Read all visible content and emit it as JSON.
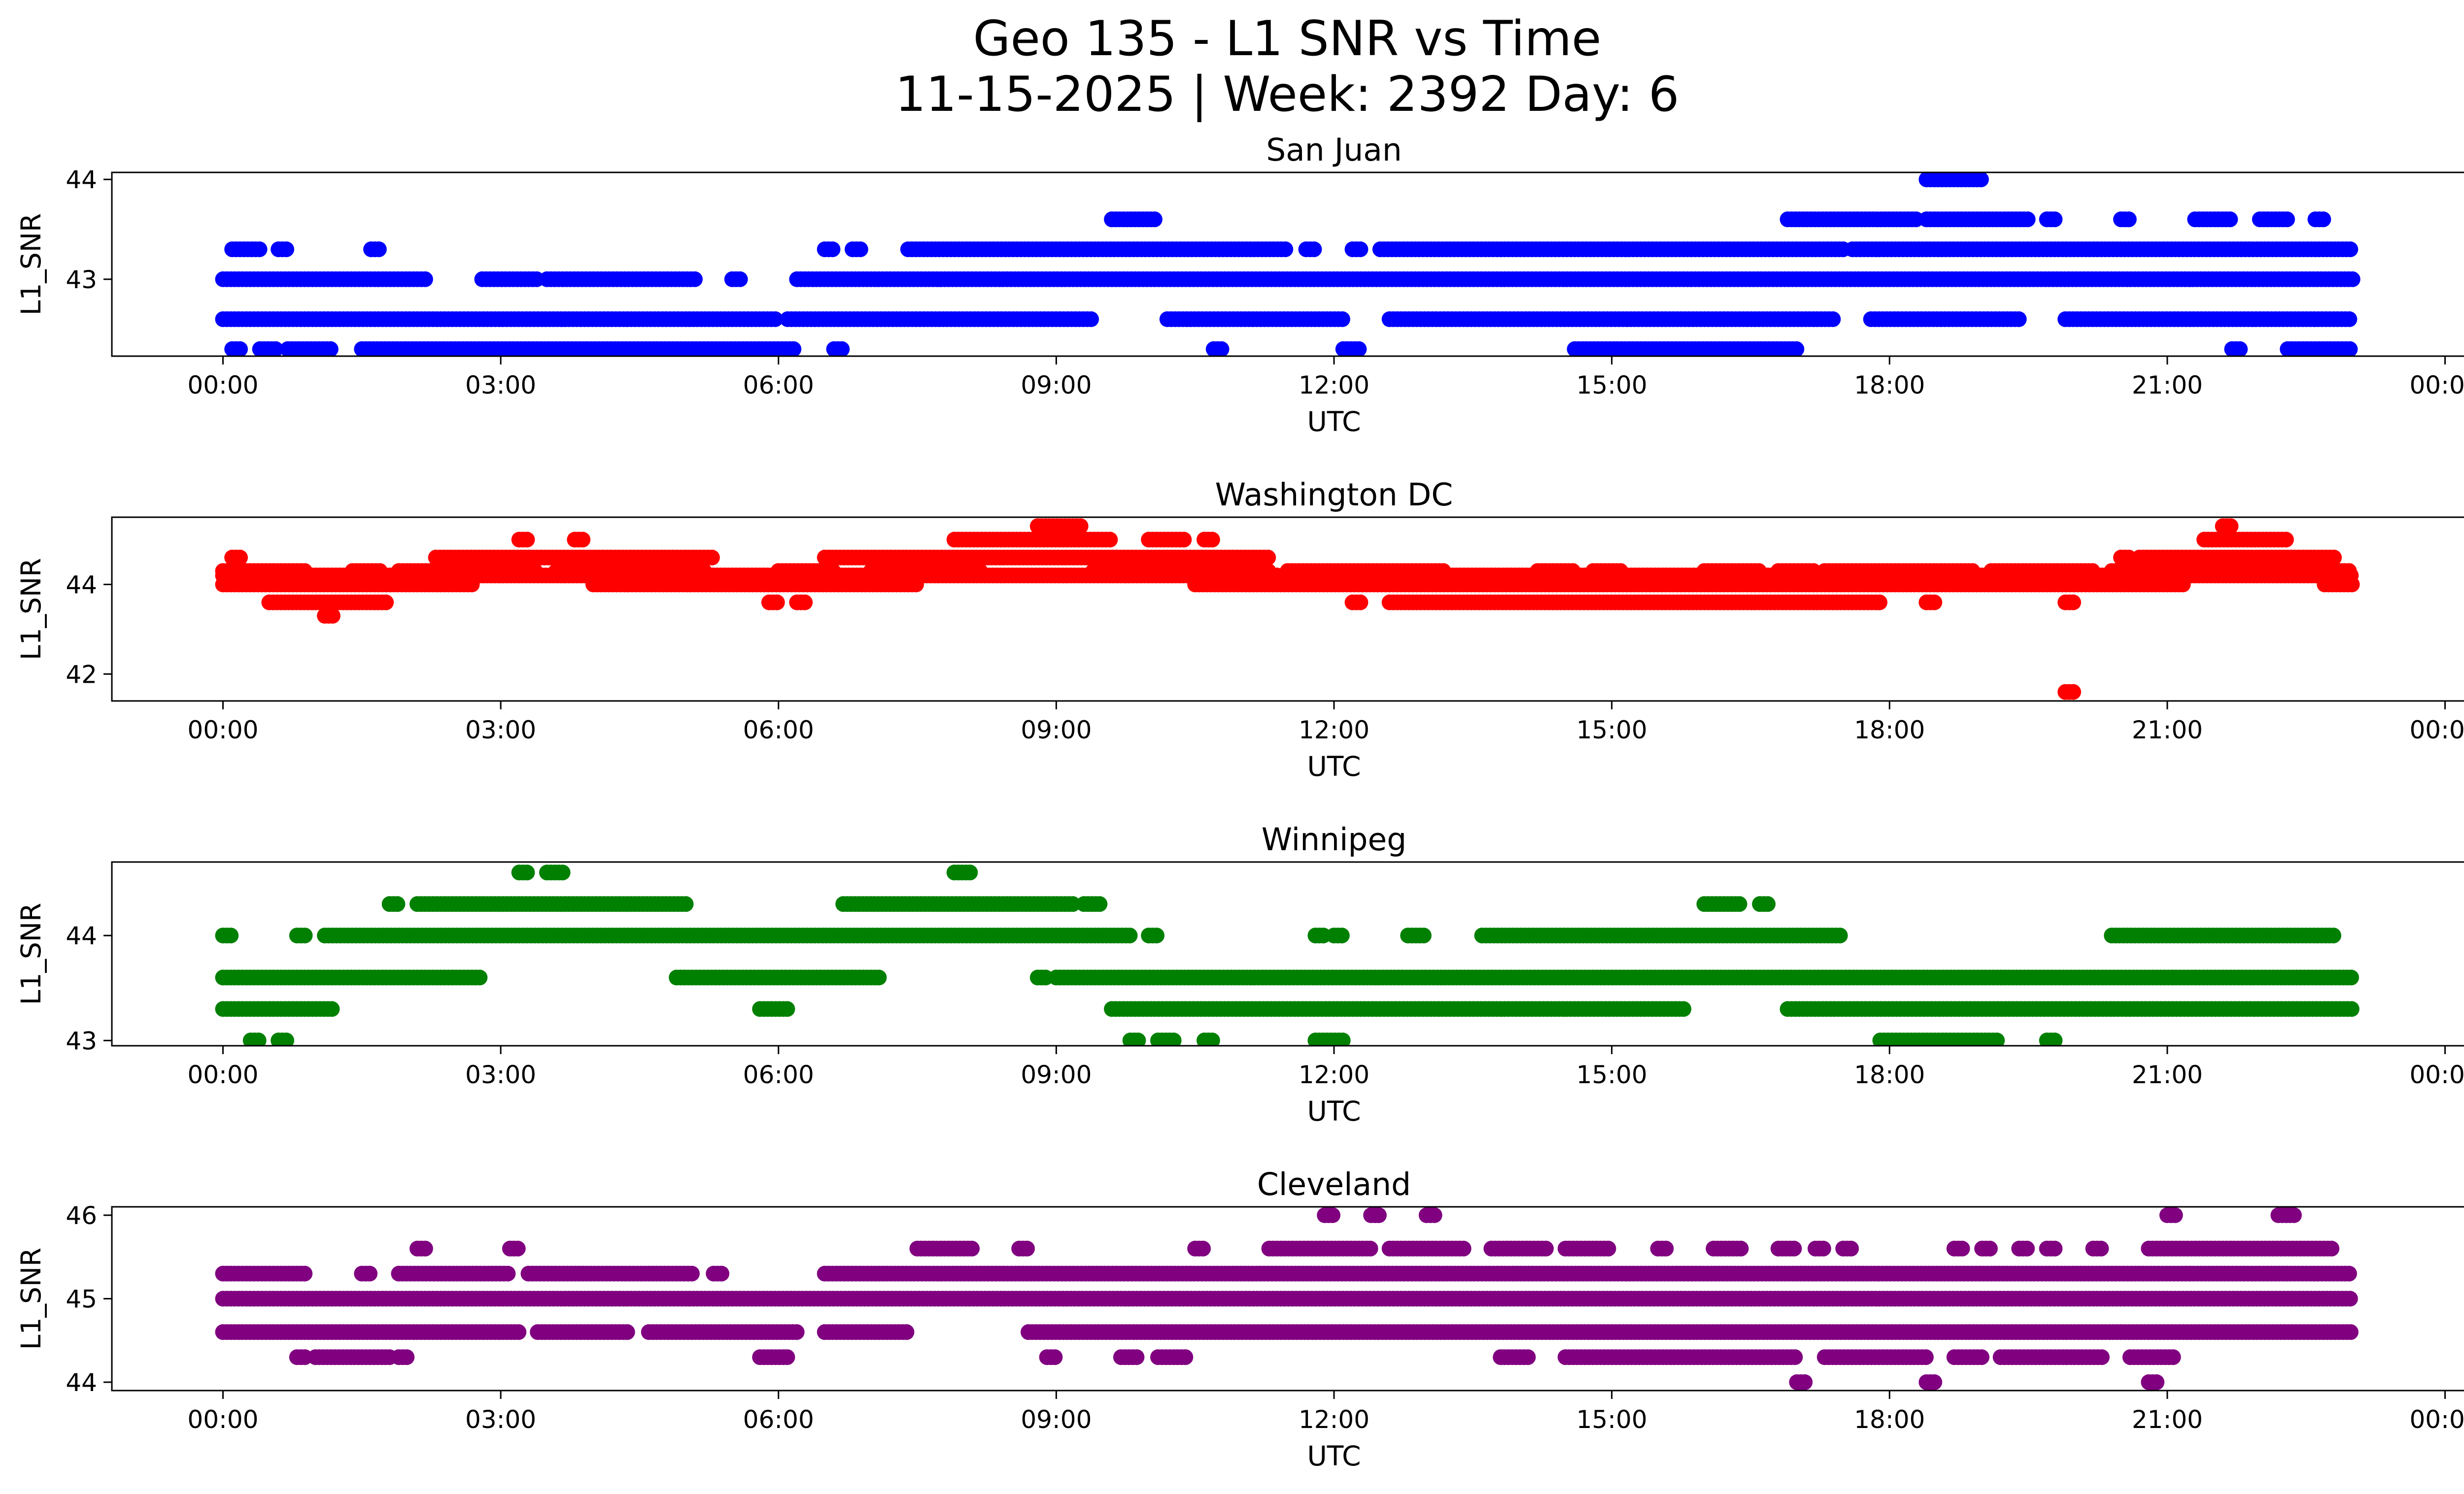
{
  "figure": {
    "title_line1": "Geo 135 - L1 SNR vs Time",
    "title_line2": "11-15-2025 | Week: 2392 Day: 6"
  },
  "chart_data": [
    {
      "type": "scatter",
      "title": "San Juan",
      "xlabel": "UTC",
      "ylabel": "L1_SNR",
      "color": "#0000ff",
      "x_ticks": [
        "00:00",
        "03:00",
        "06:00",
        "09:00",
        "12:00",
        "15:00",
        "18:00",
        "21:00",
        "00:00"
      ],
      "x_range_hours": [
        -1.2,
        25.2
      ],
      "y_ticks": [
        43,
        44
      ],
      "ylim": [
        42.23,
        44.07
      ],
      "series": [
        {
          "value": 43.0,
          "intervals": [
            [
              0.0,
              2.2
            ],
            [
              2.8,
              3.4
            ],
            [
              3.5,
              5.1
            ],
            [
              5.5,
              5.6
            ],
            [
              6.2,
              23.0
            ]
          ]
        },
        {
          "value": 42.6,
          "intervals": [
            [
              0.0,
              6.0
            ],
            [
              6.1,
              9.4
            ],
            [
              10.2,
              12.1
            ],
            [
              12.6,
              17.4
            ],
            [
              17.8,
              19.4
            ],
            [
              19.9,
              23.0
            ]
          ]
        },
        {
          "value": 42.3,
          "intervals": [
            [
              0.1,
              0.2
            ],
            [
              0.4,
              0.6
            ],
            [
              0.7,
              1.2
            ],
            [
              1.5,
              6.2
            ],
            [
              6.6,
              6.7
            ],
            [
              10.7,
              10.8
            ],
            [
              12.1,
              12.3
            ],
            [
              14.6,
              17.0
            ],
            [
              21.7,
              21.8
            ],
            [
              22.3,
              23.0
            ]
          ]
        },
        {
          "value": 43.3,
          "intervals": [
            [
              0.1,
              0.4
            ],
            [
              0.6,
              0.7
            ],
            [
              1.6,
              1.7
            ],
            [
              6.5,
              6.6
            ],
            [
              6.8,
              6.9
            ],
            [
              7.4,
              11.5
            ],
            [
              11.7,
              11.8
            ],
            [
              12.2,
              12.3
            ],
            [
              12.5,
              17.5
            ],
            [
              17.6,
              23.0
            ]
          ]
        },
        {
          "value": 43.6,
          "intervals": [
            [
              9.6,
              10.1
            ],
            [
              16.9,
              18.3
            ],
            [
              18.4,
              19.5
            ],
            [
              19.7,
              19.8
            ],
            [
              20.5,
              20.6
            ],
            [
              21.3,
              21.7
            ],
            [
              22.0,
              22.3
            ],
            [
              22.6,
              22.7
            ]
          ]
        },
        {
          "value": 44.0,
          "intervals": [
            [
              18.4,
              19.0
            ]
          ]
        }
      ]
    },
    {
      "type": "scatter",
      "title": "Washington DC",
      "xlabel": "UTC",
      "ylabel": "L1_SNR",
      "color": "#ff0000",
      "x_ticks": [
        "00:00",
        "03:00",
        "06:00",
        "09:00",
        "12:00",
        "15:00",
        "18:00",
        "21:00",
        "00:00"
      ],
      "x_range_hours": [
        -1.2,
        25.2
      ],
      "y_ticks": [
        42,
        44
      ],
      "ylim": [
        41.4,
        45.5
      ],
      "series": [
        {
          "value": 44.2,
          "intervals": [
            [
              0.0,
              11.4
            ],
            [
              11.6,
              23.0
            ]
          ]
        },
        {
          "value": 44.0,
          "intervals": [
            [
              0.0,
              2.7
            ],
            [
              4.0,
              7.5
            ],
            [
              10.5,
              21.2
            ],
            [
              22.7,
              23.0
            ]
          ]
        },
        {
          "value": 44.3,
          "intervals": [
            [
              0.0,
              0.9
            ],
            [
              1.4,
              1.7
            ],
            [
              1.9,
              3.4
            ],
            [
              3.6,
              5.2
            ],
            [
              6.0,
              6.6
            ],
            [
              7.0,
              8.2
            ],
            [
              9.4,
              11.3
            ],
            [
              11.5,
              13.2
            ],
            [
              14.2,
              14.6
            ],
            [
              14.8,
              15.1
            ],
            [
              16.0,
              16.6
            ],
            [
              16.8,
              17.2
            ],
            [
              17.3,
              18.9
            ],
            [
              19.1,
              20.2
            ],
            [
              20.4,
              23.0
            ]
          ]
        },
        {
          "value": 43.6,
          "intervals": [
            [
              0.5,
              1.8
            ],
            [
              5.9,
              6.0
            ],
            [
              6.2,
              6.3
            ],
            [
              12.2,
              12.3
            ],
            [
              12.6,
              17.9
            ],
            [
              18.4,
              18.5
            ],
            [
              19.9,
              20.0
            ]
          ]
        },
        {
          "value": 44.6,
          "intervals": [
            [
              0.1,
              0.2
            ],
            [
              2.3,
              5.3
            ],
            [
              6.5,
              11.3
            ],
            [
              20.5,
              20.6
            ],
            [
              20.7,
              22.8
            ]
          ]
        },
        {
          "value": 45.0,
          "intervals": [
            [
              3.2,
              3.3
            ],
            [
              3.8,
              3.9
            ],
            [
              7.9,
              9.6
            ],
            [
              10.0,
              10.4
            ],
            [
              10.6,
              10.7
            ],
            [
              21.4,
              22.3
            ]
          ]
        },
        {
          "value": 43.3,
          "intervals": [
            [
              1.1,
              1.2
            ]
          ]
        },
        {
          "value": 45.3,
          "intervals": [
            [
              8.8,
              9.3
            ],
            [
              21.6,
              21.7
            ]
          ]
        },
        {
          "value": 41.6,
          "intervals": [
            [
              19.9,
              20.0
            ]
          ]
        }
      ]
    },
    {
      "type": "scatter",
      "title": "Winnipeg",
      "xlabel": "UTC",
      "ylabel": "L1_SNR",
      "color": "#008000",
      "x_ticks": [
        "00:00",
        "03:00",
        "06:00",
        "09:00",
        "12:00",
        "15:00",
        "18:00",
        "21:00",
        "00:00"
      ],
      "x_range_hours": [
        -1.2,
        25.2
      ],
      "y_ticks": [
        43,
        44
      ],
      "ylim": [
        42.95,
        44.7
      ],
      "series": [
        {
          "value": 43.6,
          "intervals": [
            [
              0.0,
              2.8
            ],
            [
              4.9,
              7.1
            ],
            [
              8.8,
              8.9
            ],
            [
              9.0,
              23.0
            ]
          ]
        },
        {
          "value": 43.3,
          "intervals": [
            [
              0.0,
              1.2
            ],
            [
              5.8,
              6.1
            ],
            [
              9.6,
              15.8
            ],
            [
              16.9,
              23.0
            ]
          ]
        },
        {
          "value": 44.0,
          "intervals": [
            [
              0.0,
              0.1
            ],
            [
              0.8,
              0.9
            ],
            [
              1.1,
              9.8
            ],
            [
              10.0,
              10.1
            ],
            [
              11.8,
              11.9
            ],
            [
              12.0,
              12.1
            ],
            [
              12.8,
              13.0
            ],
            [
              13.6,
              17.5
            ],
            [
              20.4,
              22.8
            ]
          ]
        },
        {
          "value": 44.3,
          "intervals": [
            [
              1.8,
              1.9
            ],
            [
              2.1,
              5.0
            ],
            [
              6.7,
              9.2
            ],
            [
              9.3,
              9.5
            ],
            [
              16.0,
              16.4
            ],
            [
              16.6,
              16.7
            ]
          ]
        },
        {
          "value": 44.6,
          "intervals": [
            [
              3.2,
              3.3
            ],
            [
              3.5,
              3.7
            ],
            [
              7.9,
              8.1
            ]
          ]
        },
        {
          "value": 43.0,
          "intervals": [
            [
              0.3,
              0.4
            ],
            [
              0.6,
              0.7
            ],
            [
              9.8,
              9.9
            ],
            [
              10.1,
              10.3
            ],
            [
              10.6,
              10.7
            ],
            [
              11.8,
              12.1
            ],
            [
              17.9,
              19.2
            ],
            [
              19.7,
              19.8
            ]
          ]
        }
      ]
    },
    {
      "type": "scatter",
      "title": "Cleveland",
      "xlabel": "UTC",
      "ylabel": "L1_SNR",
      "color": "#800080",
      "x_ticks": [
        "00:00",
        "03:00",
        "06:00",
        "09:00",
        "12:00",
        "15:00",
        "18:00",
        "21:00",
        "00:00"
      ],
      "x_range_hours": [
        -1.2,
        25.2
      ],
      "y_ticks": [
        44,
        45,
        46
      ],
      "ylim": [
        43.9,
        46.1
      ],
      "series": [
        {
          "value": 45.0,
          "intervals": [
            [
              0.0,
              23.0
            ]
          ]
        },
        {
          "value": 45.3,
          "intervals": [
            [
              0.0,
              0.9
            ],
            [
              1.5,
              1.6
            ],
            [
              1.9,
              3.1
            ],
            [
              3.3,
              5.1
            ],
            [
              5.3,
              5.4
            ],
            [
              6.5,
              23.0
            ]
          ]
        },
        {
          "value": 44.6,
          "intervals": [
            [
              0.0,
              3.2
            ],
            [
              3.4,
              4.4
            ],
            [
              4.6,
              6.2
            ],
            [
              6.5,
              7.4
            ],
            [
              8.7,
              23.0
            ]
          ]
        },
        {
          "value": 44.3,
          "intervals": [
            [
              0.8,
              0.9
            ],
            [
              1.0,
              1.8
            ],
            [
              1.9,
              2.0
            ],
            [
              5.8,
              6.1
            ],
            [
              8.9,
              9.0
            ],
            [
              9.7,
              9.9
            ],
            [
              10.1,
              10.4
            ],
            [
              13.8,
              14.1
            ],
            [
              14.5,
              17.0
            ],
            [
              17.3,
              18.4
            ],
            [
              18.7,
              19.0
            ],
            [
              19.2,
              20.3
            ],
            [
              20.6,
              21.1
            ]
          ]
        },
        {
          "value": 45.6,
          "intervals": [
            [
              2.1,
              2.2
            ],
            [
              3.1,
              3.2
            ],
            [
              7.5,
              8.1
            ],
            [
              8.6,
              8.7
            ],
            [
              10.5,
              10.6
            ],
            [
              11.3,
              12.4
            ],
            [
              12.6,
              13.4
            ],
            [
              13.7,
              14.3
            ],
            [
              14.5,
              15.0
            ],
            [
              15.5,
              15.6
            ],
            [
              16.1,
              16.4
            ],
            [
              16.8,
              17.0
            ],
            [
              17.2,
              17.3
            ],
            [
              17.5,
              17.6
            ],
            [
              18.7,
              18.8
            ],
            [
              19.0,
              19.1
            ],
            [
              19.4,
              19.5
            ],
            [
              19.7,
              19.8
            ],
            [
              20.2,
              20.3
            ],
            [
              20.8,
              22.8
            ]
          ]
        },
        {
          "value": 46.0,
          "intervals": [
            [
              11.9,
              12.0
            ],
            [
              12.4,
              12.5
            ],
            [
              13.0,
              13.1
            ],
            [
              21.0,
              21.1
            ],
            [
              22.2,
              22.4
            ]
          ]
        },
        {
          "value": 44.0,
          "intervals": [
            [
              17.0,
              17.1
            ],
            [
              18.4,
              18.5
            ],
            [
              20.8,
              20.9
            ]
          ]
        }
      ]
    }
  ]
}
